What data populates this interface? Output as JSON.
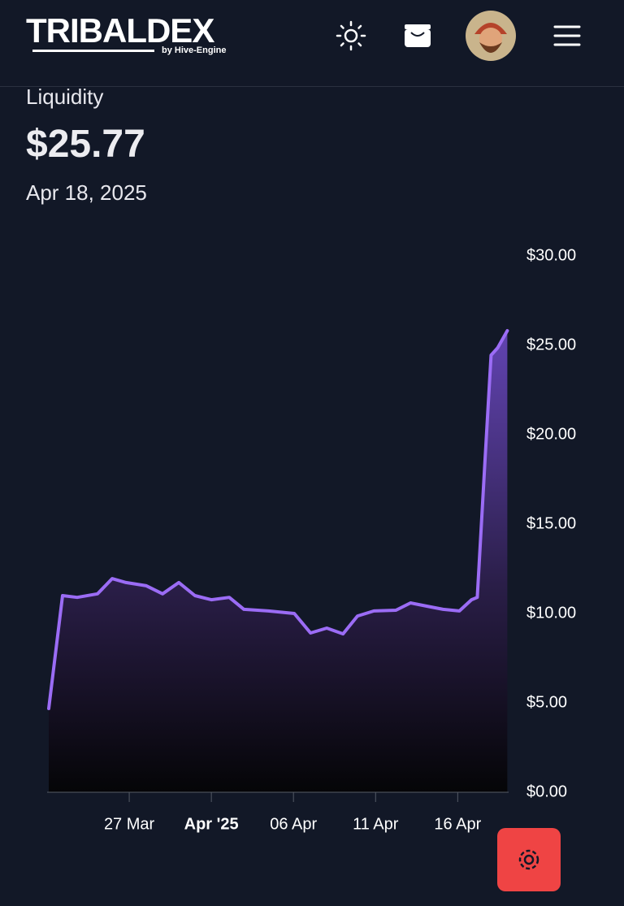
{
  "header": {
    "logo": "TRIBALDEX",
    "logo_sub": "by Hive-Engine"
  },
  "summary": {
    "label": "Liquidity",
    "value": "$25.77",
    "date": "Apr 18, 2025"
  },
  "chart_data": {
    "type": "area",
    "x": [
      0.1,
      0.94,
      1.83,
      3.07,
      3.96,
      4.8,
      6.04,
      7.03,
      8.02,
      9.0,
      10.0,
      11.09,
      11.98,
      13.47,
      15.05,
      16.04,
      17.03,
      18.02,
      18.9,
      19.9,
      21.24,
      22.13,
      23.12,
      24.11,
      25.1,
      25.84,
      26.19,
      26.68,
      27.03,
      27.43,
      28.02
    ],
    "values": [
      4.68,
      11.0,
      10.9,
      11.1,
      11.95,
      11.73,
      11.55,
      11.1,
      11.73,
      11.0,
      10.77,
      10.9,
      10.23,
      10.14,
      10.0,
      8.91,
      9.18,
      8.86,
      9.86,
      10.14,
      10.18,
      10.59,
      10.41,
      10.23,
      10.14,
      10.77,
      10.9,
      18.86,
      24.45,
      24.86,
      25.82
    ],
    "color": "#9b6cf5",
    "xlim": [
      0,
      28.1
    ],
    "xticks": [
      {
        "value": 5,
        "label": "27 Mar"
      },
      {
        "value": 10,
        "label": "Apr '25"
      },
      {
        "value": 15,
        "label": "06 Apr"
      },
      {
        "value": 20,
        "label": "11 Apr"
      },
      {
        "value": 25,
        "label": "16 Apr"
      }
    ],
    "ylim": [
      0,
      30
    ],
    "yticks": [
      {
        "value": 0,
        "label": "$0.00"
      },
      {
        "value": 5,
        "label": "$5.00"
      },
      {
        "value": 10,
        "label": "$10.00"
      },
      {
        "value": 15,
        "label": "$15.00"
      },
      {
        "value": 20,
        "label": "$20.00"
      },
      {
        "value": 25,
        "label": "$25.00"
      },
      {
        "value": 30,
        "label": "$30.00"
      }
    ]
  }
}
